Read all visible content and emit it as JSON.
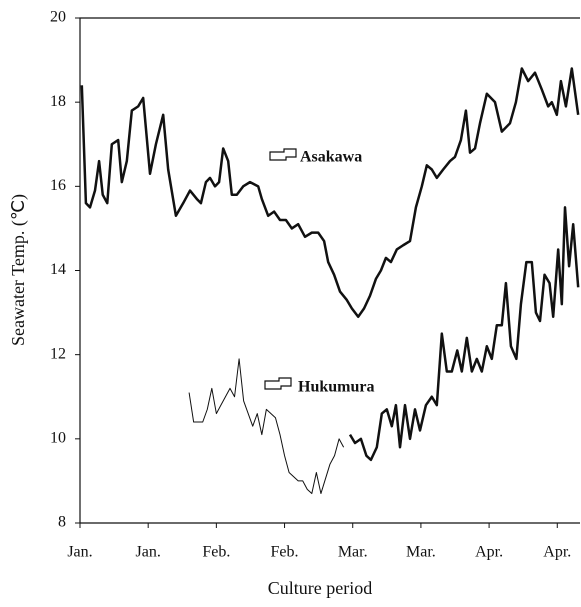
{
  "chart_data": {
    "type": "line",
    "y_label": "Seawater Temp. (℃)",
    "x_label": "Culture period",
    "xlim": [
      0,
      110
    ],
    "ylim": [
      8,
      20
    ],
    "yticks": [
      8,
      10,
      12,
      14,
      16,
      18,
      20
    ],
    "xticks": [
      {
        "value": 0,
        "label": "Jan."
      },
      {
        "value": 15,
        "label": "Jan."
      },
      {
        "value": 30,
        "label": "Feb."
      },
      {
        "value": 45,
        "label": "Feb."
      },
      {
        "value": 60,
        "label": "Mar."
      },
      {
        "value": 75,
        "label": "Mar."
      },
      {
        "value": 90,
        "label": "Apr."
      },
      {
        "value": 105,
        "label": "Apr."
      }
    ],
    "series": [
      {
        "name": "Asakawa",
        "color": "#111111",
        "segment_widths": [
          2.5
        ],
        "x": [
          0.4,
          1.3,
          2.2,
          3.3,
          4.2,
          5,
          6,
          7,
          8.4,
          9.2,
          10.3,
          11.4,
          12.8,
          13.9,
          15.4,
          16.7,
          18.3,
          19.4,
          21.1,
          22.7,
          24.2,
          25.7,
          26.6,
          27.7,
          28.6,
          29.7,
          30.6,
          31.5,
          32.6,
          33.4,
          34.5,
          35.9,
          37.4,
          39.2,
          40,
          41.4,
          42.7,
          44,
          45.3,
          46.6,
          48,
          49.5,
          51,
          52.4,
          53.7,
          54.6,
          55.9,
          57.2,
          58.7,
          59.8,
          61.2,
          62.5,
          63.8,
          65.1,
          66.2,
          67.3,
          68.4,
          69.7,
          71.1,
          72.6,
          73.9,
          75.2,
          76.3,
          77.4,
          78.5,
          79.9,
          81.4,
          82.5,
          83.8,
          84.9,
          85.8,
          86.9,
          88,
          89.5,
          91.3,
          92.8,
          94.6,
          95.9,
          97.2,
          98.6,
          100.1,
          101.6,
          103,
          103.8,
          104.9,
          105.8,
          106.9,
          108.2,
          109.6
        ],
        "values": [
          18.4,
          15.6,
          15.5,
          15.9,
          16.6,
          15.8,
          15.6,
          17.0,
          17.1,
          16.1,
          16.6,
          17.8,
          17.9,
          18.1,
          16.3,
          17.0,
          17.7,
          16.4,
          15.3,
          15.6,
          15.9,
          15.7,
          15.6,
          16.1,
          16.2,
          16.0,
          16.1,
          16.9,
          16.6,
          15.8,
          15.8,
          16.0,
          16.1,
          16.0,
          15.7,
          15.3,
          15.4,
          15.2,
          15.2,
          15.0,
          15.1,
          14.8,
          14.9,
          14.9,
          14.7,
          14.2,
          13.9,
          13.5,
          13.3,
          13.1,
          12.9,
          13.1,
          13.4,
          13.8,
          14.0,
          14.3,
          14.2,
          14.5,
          14.6,
          14.7,
          15.5,
          16.0,
          16.5,
          16.4,
          16.2,
          16.4,
          16.6,
          16.7,
          17.1,
          17.8,
          16.8,
          16.9,
          17.5,
          18.2,
          18.0,
          17.3,
          17.5,
          18.0,
          18.8,
          18.5,
          18.7,
          18.3,
          17.9,
          18.0,
          17.7,
          18.5,
          17.9,
          18.8,
          17.7
        ]
      },
      {
        "name": "Hukumura",
        "color": "#111111",
        "segment_widths": [
          1,
          2.5
        ],
        "x": [
          24,
          25,
          27,
          28,
          29,
          30,
          31,
          33,
          34,
          35,
          36,
          37,
          38,
          39,
          40,
          41,
          43,
          44,
          45,
          46,
          48,
          49,
          50,
          51,
          52,
          53,
          55,
          56,
          57,
          58,
          58.7,
          59.4,
          60.5,
          61.8,
          63,
          64,
          65.3,
          66.4,
          67.5,
          68.6,
          69.5,
          70.4,
          71.5,
          72.6,
          73.7,
          74.8,
          76.1,
          77.4,
          78.5,
          79.6,
          80.7,
          81.8,
          83,
          84,
          85.1,
          86.2,
          87.3,
          88.4,
          89.5,
          90.6,
          91.7,
          92.8,
          93.7,
          94.8,
          96,
          97,
          98.2,
          99.4,
          100.3,
          101.2,
          102.2,
          103.3,
          104.1,
          105.2,
          106,
          106.7,
          107.6,
          108.5,
          109.6
        ],
        "values": [
          11.1,
          10.4,
          10.4,
          10.7,
          11.2,
          10.6,
          10.8,
          11.2,
          11.0,
          11.9,
          10.9,
          10.6,
          10.3,
          10.6,
          10.1,
          10.7,
          10.5,
          10.1,
          9.6,
          9.2,
          9.0,
          9.0,
          8.8,
          8.7,
          9.2,
          8.7,
          9.4,
          9.6,
          10.0,
          9.8,
          null,
          10.1,
          9.9,
          10.0,
          9.6,
          9.5,
          9.8,
          10.6,
          10.7,
          10.3,
          10.8,
          9.8,
          10.8,
          10.0,
          10.7,
          10.2,
          10.8,
          11.0,
          10.8,
          12.5,
          11.6,
          11.6,
          12.1,
          11.6,
          12.4,
          11.6,
          11.9,
          11.6,
          12.2,
          11.9,
          12.7,
          12.7,
          13.7,
          12.2,
          11.9,
          13.2,
          14.2,
          14.2,
          13.0,
          12.8,
          13.9,
          13.7,
          12.9,
          14.5,
          13.2,
          15.5,
          14.1,
          15.1,
          13.6
        ]
      }
    ]
  }
}
